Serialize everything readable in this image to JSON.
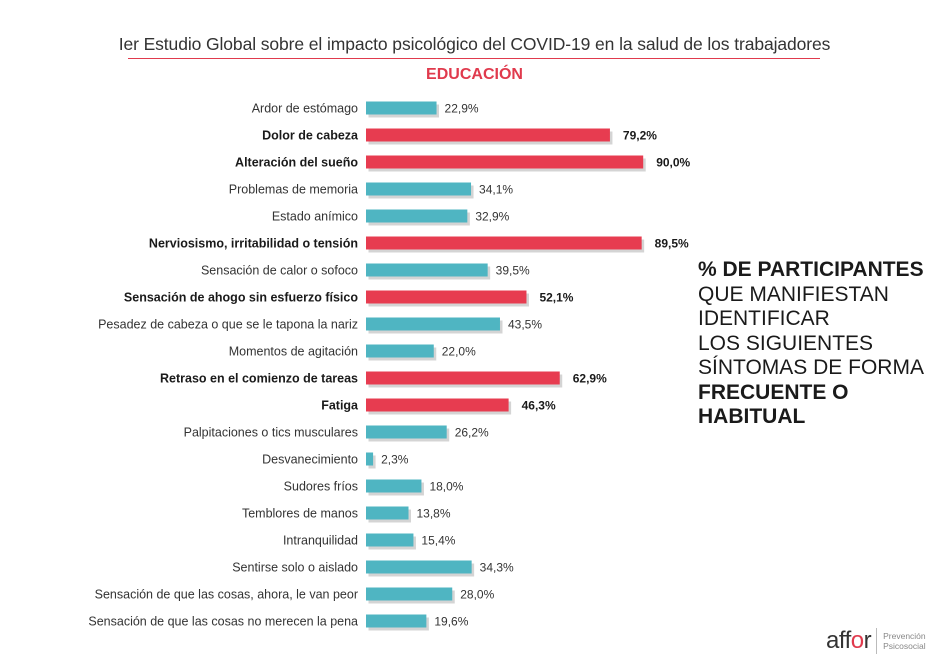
{
  "header": {
    "title": "Ier Estudio Global sobre el impacto psicológico del COVID-19 en la salud de los trabajadores",
    "subtitle": "EDUCACIÓN"
  },
  "colors": {
    "highlight": "#e73c50",
    "normal": "#4fb5c2",
    "shadow": "#d4d4d4",
    "accent": "#e03a4d"
  },
  "chart_data": {
    "type": "bar",
    "orientation": "horizontal",
    "xlim": [
      0,
      100
    ],
    "categories": [
      "Ardor de estómago",
      "Dolor de cabeza",
      "Alteración del sueño",
      "Problemas de memoria",
      "Estado anímico",
      "Nerviosismo, irritabilidad o tensión",
      "Sensación de calor o sofoco",
      "Sensación de ahogo sin esfuerzo físico",
      "Pesadez de cabeza o que se le tapona la nariz",
      "Momentos de agitación",
      "Retraso en el comienzo de tareas",
      "Fatiga",
      "Palpitaciones o tics musculares",
      "Desvanecimiento",
      "Sudores fríos",
      "Temblores de manos",
      "Intranquilidad",
      "Sentirse solo o aislado",
      "Sensación de que las cosas, ahora, le van peor",
      "Sensación de que las cosas no merecen la pena"
    ],
    "values": [
      22.9,
      79.2,
      90.0,
      34.1,
      32.9,
      89.5,
      39.5,
      52.1,
      43.5,
      22.0,
      62.9,
      46.3,
      26.2,
      2.3,
      18.0,
      13.8,
      15.4,
      34.3,
      28.0,
      19.6
    ],
    "value_labels": [
      "22,9%",
      "79,2%",
      "90,0%",
      "34,1%",
      "32,9%",
      "89,5%",
      "39,5%",
      "52,1%",
      "43,5%",
      "22,0%",
      "62,9%",
      "46,3%",
      "26,2%",
      "2,3%",
      "18,0%",
      "13,8%",
      "15,4%",
      "34,3%",
      "28,0%",
      "19,6%"
    ],
    "highlighted": [
      false,
      true,
      true,
      false,
      false,
      true,
      false,
      true,
      false,
      false,
      true,
      true,
      false,
      false,
      false,
      false,
      false,
      false,
      false,
      false
    ]
  },
  "side_text": {
    "line1": "% DE PARTICIPANTES",
    "line2": "QUE MANIFIESTAN",
    "line3": "IDENTIFICAR",
    "line4": "LOS SIGUIENTES",
    "line5": "SÍNTOMAS DE FORMA",
    "line6": "FRECUENTE O",
    "line7": "HABITUAL"
  },
  "logo": {
    "word_a": "aff",
    "word_o": "o",
    "word_b": "r",
    "sub1": "Prevención",
    "sub2": "Psicosocial"
  }
}
